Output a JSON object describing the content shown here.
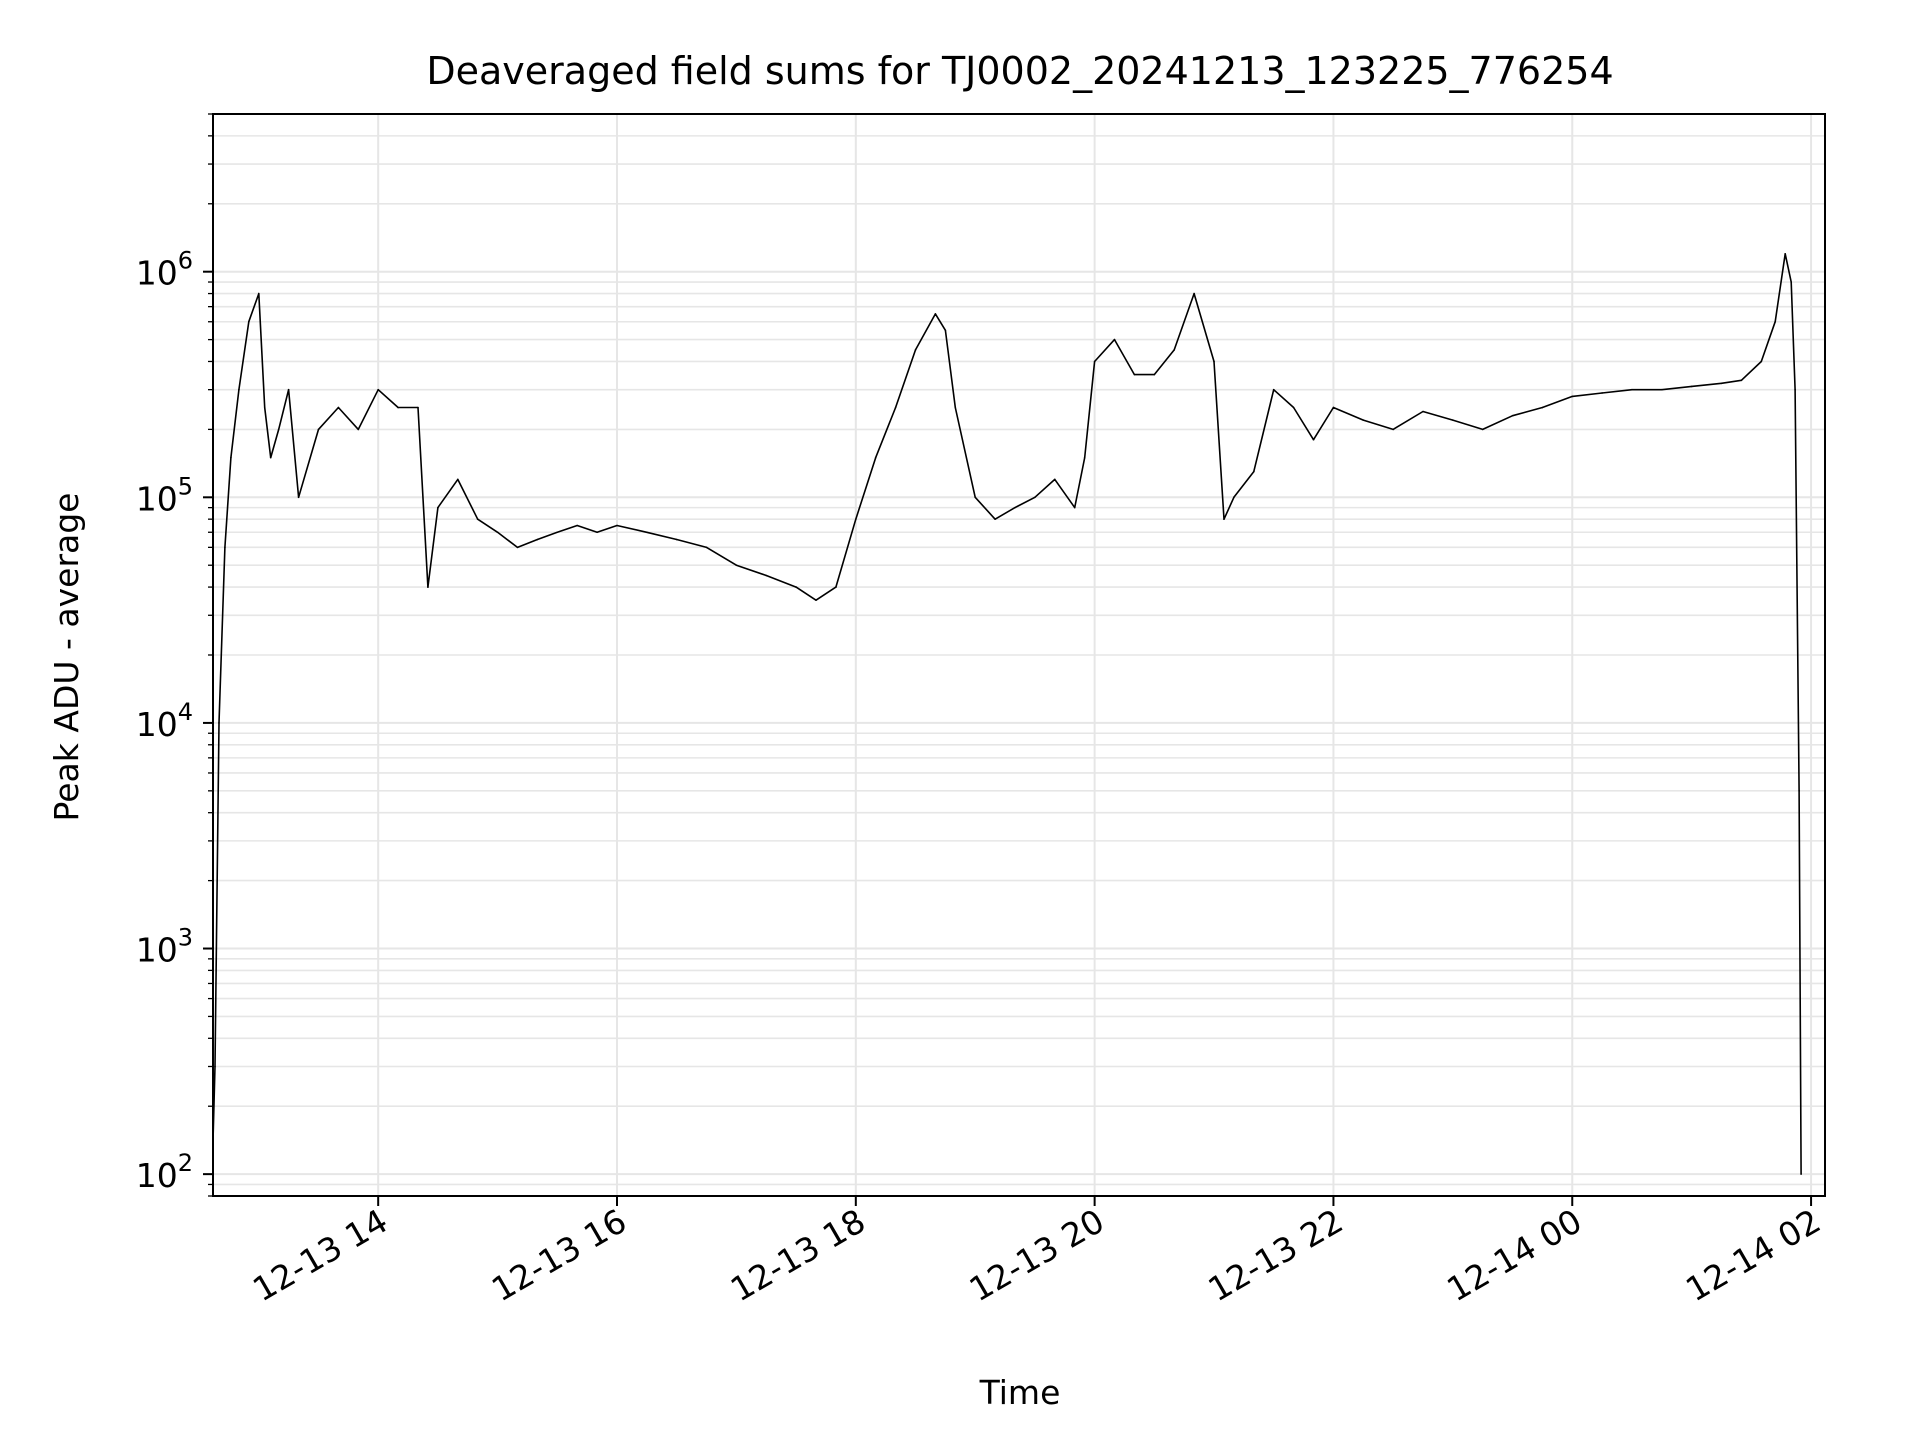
{
  "chart_data": {
    "type": "line",
    "title": "Deaveraged field sums for TJ0002_20241213_123225_776254",
    "xlabel": "Time",
    "ylabel": "Peak ADU - average",
    "yscale": "log",
    "ylim": [
      80,
      5000000
    ],
    "xlim": [
      "2024-12-13 12:37",
      "2024-12-14 02:07"
    ],
    "grid": true,
    "line_color": "#000000",
    "x_ticks": [
      {
        "value": "2024-12-13 14:00",
        "label": "12-13 14"
      },
      {
        "value": "2024-12-13 16:00",
        "label": "12-13 16"
      },
      {
        "value": "2024-12-13 18:00",
        "label": "12-13 18"
      },
      {
        "value": "2024-12-13 20:00",
        "label": "12-13 20"
      },
      {
        "value": "2024-12-13 22:00",
        "label": "12-13 22"
      },
      {
        "value": "2024-12-14 00:00",
        "label": "12-14 00"
      },
      {
        "value": "2024-12-14 02:00",
        "label": "12-14 02"
      }
    ],
    "y_ticks": [
      {
        "value": 100,
        "base": "10",
        "exp": "2"
      },
      {
        "value": 1000,
        "base": "10",
        "exp": "3"
      },
      {
        "value": 10000,
        "base": "10",
        "exp": "4"
      },
      {
        "value": 100000,
        "base": "10",
        "exp": "5"
      },
      {
        "value": 1000000,
        "base": "10",
        "exp": "6"
      }
    ],
    "series": [
      {
        "x": [
          "2024-12-13 12:37",
          "2024-12-13 12:38",
          "2024-12-13 12:40",
          "2024-12-13 12:43",
          "2024-12-13 12:46",
          "2024-12-13 12:50",
          "2024-12-13 12:55",
          "2024-12-13 13:00",
          "2024-12-13 13:03",
          "2024-12-13 13:06",
          "2024-12-13 13:10",
          "2024-12-13 13:15",
          "2024-12-13 13:20",
          "2024-12-13 13:30",
          "2024-12-13 13:40",
          "2024-12-13 13:50",
          "2024-12-13 14:00",
          "2024-12-13 14:10",
          "2024-12-13 14:20",
          "2024-12-13 14:25",
          "2024-12-13 14:30",
          "2024-12-13 14:40",
          "2024-12-13 14:50",
          "2024-12-13 15:00",
          "2024-12-13 15:10",
          "2024-12-13 15:20",
          "2024-12-13 15:30",
          "2024-12-13 15:40",
          "2024-12-13 15:50",
          "2024-12-13 16:00",
          "2024-12-13 16:15",
          "2024-12-13 16:30",
          "2024-12-13 16:45",
          "2024-12-13 17:00",
          "2024-12-13 17:15",
          "2024-12-13 17:30",
          "2024-12-13 17:40",
          "2024-12-13 17:50",
          "2024-12-13 18:00",
          "2024-12-13 18:10",
          "2024-12-13 18:20",
          "2024-12-13 18:30",
          "2024-12-13 18:40",
          "2024-12-13 18:45",
          "2024-12-13 18:50",
          "2024-12-13 19:00",
          "2024-12-13 19:10",
          "2024-12-13 19:20",
          "2024-12-13 19:30",
          "2024-12-13 19:40",
          "2024-12-13 19:50",
          "2024-12-13 19:55",
          "2024-12-13 20:00",
          "2024-12-13 20:10",
          "2024-12-13 20:20",
          "2024-12-13 20:30",
          "2024-12-13 20:40",
          "2024-12-13 20:50",
          "2024-12-13 21:00",
          "2024-12-13 21:05",
          "2024-12-13 21:10",
          "2024-12-13 21:20",
          "2024-12-13 21:30",
          "2024-12-13 21:40",
          "2024-12-13 21:50",
          "2024-12-13 22:00",
          "2024-12-13 22:15",
          "2024-12-13 22:30",
          "2024-12-13 22:45",
          "2024-12-13 23:00",
          "2024-12-13 23:15",
          "2024-12-13 23:30",
          "2024-12-13 23:45",
          "2024-12-14 00:00",
          "2024-12-14 00:15",
          "2024-12-14 00:30",
          "2024-12-14 00:45",
          "2024-12-14 01:00",
          "2024-12-14 01:15",
          "2024-12-14 01:25",
          "2024-12-14 01:35",
          "2024-12-14 01:42",
          "2024-12-14 01:47",
          "2024-12-14 01:50",
          "2024-12-14 01:52",
          "2024-12-14 01:54",
          "2024-12-14 01:55"
        ],
        "y": [
          140,
          300,
          10000,
          60000,
          150000,
          300000,
          600000,
          800000,
          250000,
          150000,
          200000,
          300000,
          100000,
          200000,
          250000,
          200000,
          300000,
          250000,
          250000,
          40000,
          90000,
          120000,
          80000,
          70000,
          60000,
          65000,
          70000,
          75000,
          70000,
          75000,
          70000,
          65000,
          60000,
          50000,
          45000,
          40000,
          35000,
          40000,
          80000,
          150000,
          250000,
          450000,
          650000,
          550000,
          250000,
          100000,
          80000,
          90000,
          100000,
          120000,
          90000,
          150000,
          400000,
          500000,
          350000,
          350000,
          450000,
          800000,
          400000,
          80000,
          100000,
          130000,
          300000,
          250000,
          180000,
          250000,
          220000,
          200000,
          240000,
          220000,
          200000,
          230000,
          250000,
          280000,
          290000,
          300000,
          300000,
          310000,
          320000,
          330000,
          400000,
          600000,
          1200000,
          900000,
          300000,
          5000,
          100
        ]
      }
    ]
  }
}
